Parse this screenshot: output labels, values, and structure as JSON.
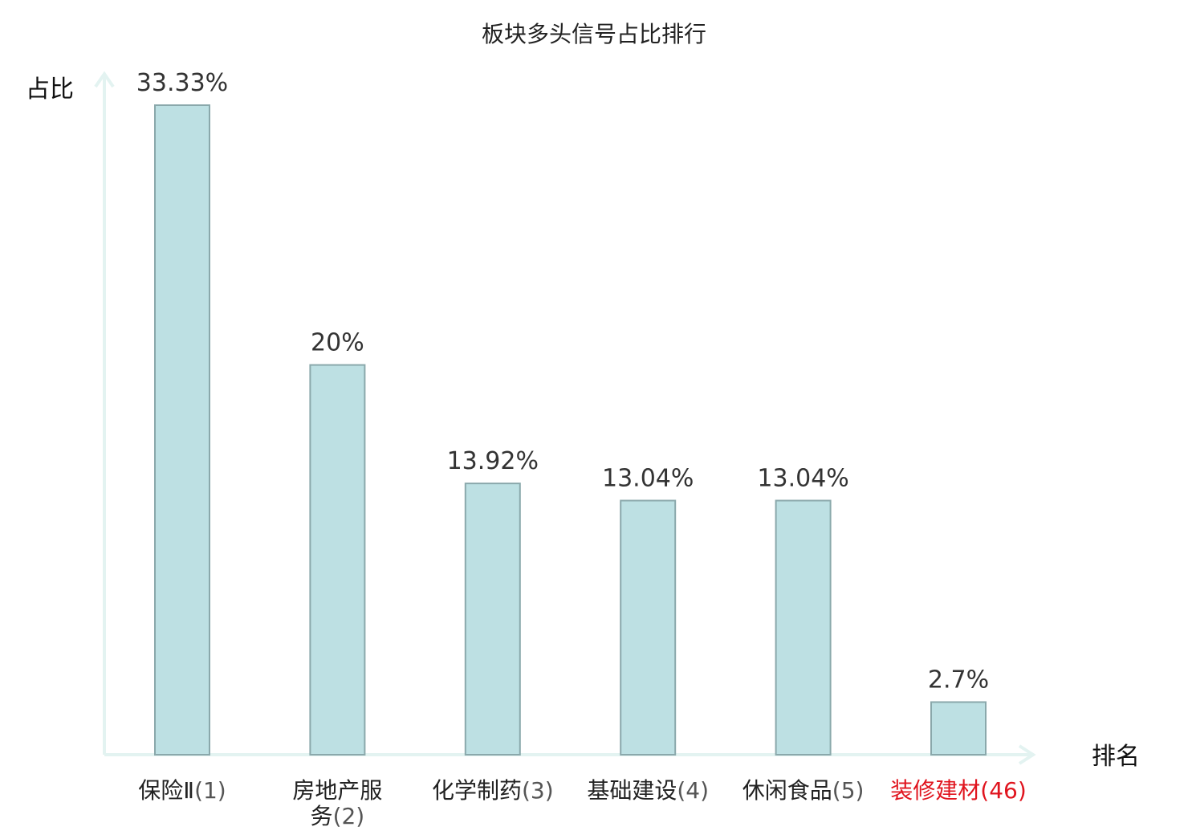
{
  "chart_data": {
    "type": "bar",
    "title": "板块多头信号占比排行",
    "ylabel": "占比",
    "xlabel": "排名",
    "ylim": [
      0,
      34
    ],
    "grid": false,
    "legend": "none",
    "categories": [
      {
        "name": "保险Ⅱ",
        "rank": "(1)",
        "highlight": false
      },
      {
        "name": "房地产服务",
        "rank": "(2)",
        "highlight": false
      },
      {
        "name": "化学制药",
        "rank": "(3)",
        "highlight": false
      },
      {
        "name": "基础建设",
        "rank": "(4)",
        "highlight": false
      },
      {
        "name": "休闲食品",
        "rank": "(5)",
        "highlight": false
      },
      {
        "name": "装修建材",
        "rank": "(46)",
        "highlight": true
      }
    ],
    "values": [
      33.33,
      20,
      13.92,
      13.04,
      13.04,
      2.7
    ],
    "data_labels": [
      "33.33%",
      "20%",
      "13.92%",
      "13.04%",
      "13.04%",
      "2.7%"
    ]
  },
  "colors": {
    "bar_fill": "#bde0e3",
    "bar_stroke": "#8aa8ab",
    "axis": "#e3f3f1",
    "highlight_text": "#e0141e",
    "text": "#222222"
  }
}
